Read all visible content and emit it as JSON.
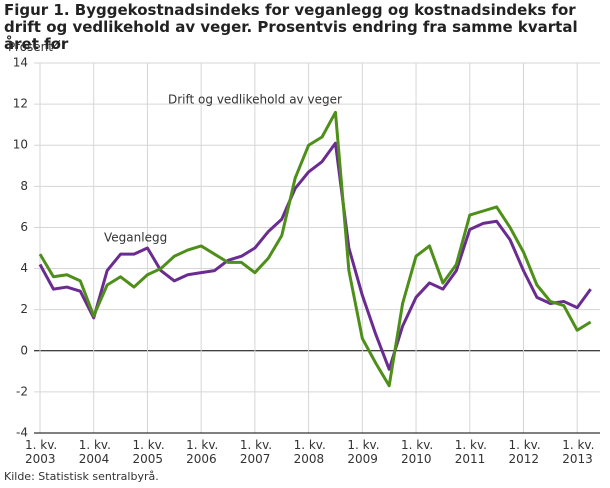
{
  "chart_data": {
    "type": "line",
    "title": "Figur 1. Byggekostnadsindeks for veganlegg og kostnadsindeks for drift og vedlikehold av veger. Prosentvis endring fra samme kvartal året før",
    "y_label": "Prosent",
    "source": "Kilde: Statistisk sentralbyrå.",
    "categories": [
      "1. kv.\n2003",
      null,
      null,
      null,
      "1. kv.\n2004",
      null,
      null,
      null,
      "1. kv.\n2005",
      null,
      null,
      null,
      "1. kv.\n2006",
      null,
      null,
      null,
      "1. kv.\n2007",
      null,
      null,
      null,
      "1. kv.\n2008",
      null,
      null,
      null,
      "1. kv.\n2009",
      null,
      null,
      null,
      "1. kv.\n2010",
      null,
      null,
      null,
      "1. kv.\n2011",
      null,
      null,
      null,
      "1. kv.\n2012",
      null,
      null,
      null,
      "1. kv.\n2013",
      null
    ],
    "series": [
      {
        "name": "Veganlegg",
        "color": "#6b2c91",
        "values": [
          4.2,
          3.0,
          3.1,
          2.9,
          1.6,
          3.9,
          4.7,
          4.7,
          5.0,
          3.9,
          3.4,
          3.7,
          3.8,
          3.9,
          4.4,
          4.6,
          5.0,
          5.8,
          6.4,
          7.9,
          8.7,
          9.2,
          10.1,
          5.0,
          2.7,
          0.8,
          -0.9,
          1.2,
          2.6,
          3.3,
          3.0,
          3.9,
          5.9,
          6.2,
          6.3,
          5.4,
          3.9,
          2.6,
          2.3,
          2.4,
          2.1,
          3.0
        ]
      },
      {
        "name": "Drift og vedlikehold av veger",
        "color": "#4e8f1a",
        "values": [
          4.7,
          3.6,
          3.7,
          3.4,
          1.7,
          3.2,
          3.6,
          3.1,
          3.7,
          4.0,
          4.6,
          4.9,
          5.1,
          4.7,
          4.3,
          4.3,
          3.8,
          4.5,
          5.6,
          8.4,
          10.0,
          10.4,
          11.6,
          3.9,
          0.6,
          -0.6,
          -1.7,
          2.3,
          4.6,
          5.1,
          3.3,
          4.2,
          6.6,
          6.8,
          7.0,
          6.0,
          4.8,
          3.2,
          2.4,
          2.2,
          1.0,
          1.4
        ]
      }
    ],
    "ylim": [
      -4,
      14
    ],
    "yticks": [
      -4,
      -2,
      0,
      2,
      4,
      6,
      8,
      10,
      12,
      14
    ],
    "grid": true
  }
}
